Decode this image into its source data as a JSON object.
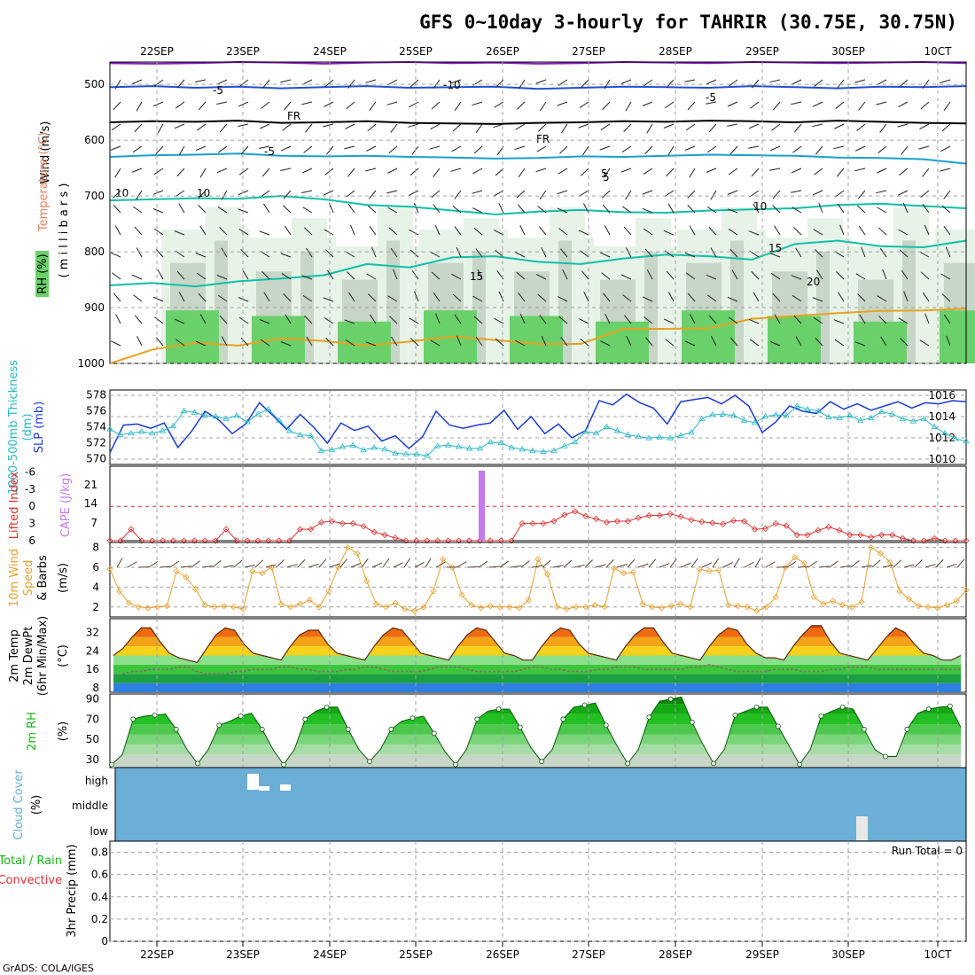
{
  "title": "GFS 0~10day 3-hourly for TAHRIR (30.75E, 30.75N)",
  "footer": "GrADS: COLA/IGES",
  "colors": {
    "panel_border": "#000000",
    "grid": "#a0a0a0",
    "rh_light": "#e6f3e6",
    "rh_mid": "#c8d6c8",
    "rh_green": "#6ad06a",
    "rh_dark": "#19b419",
    "temp_purple": "#8a1cc6",
    "temp_blue": "#1f4fd1",
    "temp_cyan": "#1ba0d0",
    "temp_teal": "#10c0a8",
    "temp_orange": "#e8a21e",
    "slp": "#1b3bd0",
    "thickness": "#28b8c8",
    "lifted": "#e03030",
    "cape": "#c678ef",
    "wind_speed": "#e8a030",
    "barb": "#5a4030",
    "cloud_bg": "#6baed6",
    "cloud_fill": "#ffffff"
  },
  "chart_data": [
    {
      "type": "line",
      "panel": "Vertical profile",
      "ylabel_parts": [
        {
          "text": "RH (%)",
          "color": "#19b419"
        },
        {
          "text": "Temperature (°C)",
          "color": "#e08060"
        },
        {
          "text": "Wind (m/s)",
          "color": "#000000"
        }
      ],
      "ylabel_units": "( m i l l i b a r s )",
      "yticks": [
        "500",
        "600",
        "700",
        "800",
        "900",
        "1000"
      ],
      "ylim": [
        460,
        1000
      ],
      "reversed_y": true,
      "contours": [
        {
          "label": "-10",
          "color": "#8a1cc6",
          "p": [
            462,
            463,
            462,
            460,
            461,
            463,
            461,
            460,
            462,
            461,
            463,
            462,
            460,
            461,
            462,
            460,
            461,
            462,
            461,
            460,
            462
          ]
        },
        {
          "label": "-5",
          "color": "#1f4fd1",
          "p": [
            505,
            503,
            506,
            504,
            507,
            505,
            503,
            506,
            505,
            504,
            508,
            506,
            504,
            505,
            506,
            503,
            505,
            507,
            504,
            505,
            503
          ]
        },
        {
          "label": "FR",
          "color": "#000000",
          "p": [
            568,
            566,
            567,
            565,
            569,
            568,
            566,
            569,
            570,
            571,
            569,
            568,
            566,
            567,
            565,
            566,
            568,
            565,
            567,
            569,
            570
          ]
        },
        {
          "label": "-5",
          "color": "#1ba0d0",
          "p": [
            630,
            627,
            626,
            624,
            628,
            629,
            628,
            630,
            631,
            633,
            632,
            629,
            630,
            628,
            626,
            627,
            628,
            631,
            632,
            634,
            642
          ]
        },
        {
          "label": "10",
          "color": "#10c0a8",
          "p": [
            708,
            706,
            704,
            705,
            700,
            706,
            716,
            719,
            726,
            733,
            728,
            725,
            729,
            730,
            726,
            724,
            722,
            716,
            714,
            718,
            722
          ]
        },
        {
          "label": "15",
          "color": "#10c0a8",
          "p": [
            860,
            856,
            862,
            853,
            848,
            842,
            822,
            828,
            810,
            808,
            818,
            822,
            812,
            805,
            808,
            814,
            786,
            780,
            790,
            792,
            780
          ]
        },
        {
          "label": "20",
          "color": "#e8a21e",
          "p": [
            1000,
            975,
            963,
            968,
            955,
            960,
            968,
            961,
            952,
            958,
            965,
            965,
            938,
            938,
            937,
            920,
            915,
            910,
            906,
            905,
            902
          ]
        }
      ],
      "contour_labels": [
        "-10",
        "-5",
        "FR",
        "FR",
        "-5",
        "-5",
        "5",
        "10",
        "10",
        "15",
        "15",
        "20",
        "10",
        "5"
      ]
    },
    {
      "type": "line",
      "panel": "Pressure / Thickness",
      "ylabel_left": "1000-500mb Thickness (dm)",
      "ylabel_right": "SLP (mb)",
      "yticks_left": [
        "578",
        "576",
        "574",
        "572",
        "570"
      ],
      "yticks_right": [
        "1016",
        "1014",
        "1012",
        "1010"
      ],
      "ylim_slp": [
        1009.5,
        1016.5
      ],
      "series": [
        {
          "name": "SLP (mb)",
          "values": [
            1010.6,
            1013.2,
            1013.3,
            1012.9,
            1013.4,
            1011.1,
            1012.6,
            1014.5,
            1013.7,
            1012.4,
            1013.3,
            1015.3,
            1014.1,
            1012.8,
            1014.2,
            1013.0,
            1011.5,
            1013.4,
            1012.7,
            1013.1,
            1011.7,
            1012.2,
            1011.0,
            1012.1,
            1014.5,
            1013.2,
            1012.9,
            1013.2,
            1013.4,
            1014.6,
            1012.8,
            1014.0,
            1012.4,
            1013.3,
            1012.0,
            1012.7,
            1015.5,
            1015.1,
            1016.1,
            1015.3,
            1014.8,
            1013.3,
            1015.4,
            1015.6,
            1015.8,
            1015.2,
            1016.0,
            1015.0,
            1012.5,
            1013.5,
            1015.0,
            1014.5,
            1014.3,
            1015.4,
            1014.7,
            1015.2,
            1014.6,
            1015.0,
            1015.4,
            1014.8,
            1015.3,
            1015.2,
            1015.5,
            1015.4
          ]
        },
        {
          "name": "Thickness (dm)",
          "values": [
            573.7,
            573.0,
            573.2,
            573.4,
            573.2,
            573.5,
            574.1,
            576.0,
            575.8,
            575.4,
            575.3,
            575.0,
            575.4,
            574.6,
            575.6,
            576.2,
            574.8,
            573.5,
            573.0,
            572.9,
            571.0,
            571.1,
            571.5,
            571.7,
            571.1,
            571.4,
            571.2,
            570.7,
            570.6,
            570.6,
            570.4,
            571.6,
            571.7,
            571.5,
            571.3,
            571.3,
            572.1,
            572.0,
            571.4,
            571.2,
            571.0,
            570.9,
            571.0,
            571.6,
            572.1,
            573.4,
            573.2,
            574.0,
            573.5,
            573.0,
            572.8,
            572.6,
            572.7,
            572.6,
            572.9,
            573.3,
            575.0,
            575.5,
            575.6,
            575.4,
            574.8,
            574.5,
            575.3,
            575.5,
            575.4,
            576.6,
            576.2,
            576.0,
            575.2,
            575.1,
            575.4,
            574.8,
            575.1,
            575.9,
            575.6,
            575.0,
            574.7,
            575.0,
            574.0,
            573.2,
            572.5,
            572.2
          ]
        }
      ]
    },
    {
      "type": "line",
      "panel": "Stability",
      "ylabel_left": "Lifted Index",
      "ylabel_right": "CAPE (J/kg)",
      "yticks_left": [
        "-6",
        "-3",
        "0",
        "3",
        "6"
      ],
      "yticks_right": [
        "21",
        "14",
        "7"
      ],
      "series": [
        {
          "name": "Lifted Index",
          "values": [
            6.0,
            6.0,
            4.0,
            6.0,
            6.0,
            6.0,
            6.0,
            6.0,
            6.0,
            6.0,
            6.0,
            4.0,
            6.0,
            6.0,
            6.0,
            6.0,
            6.0,
            6.0,
            4.0,
            4.0,
            2.8,
            2.6,
            3.0,
            3.0,
            3.5,
            4.5,
            5.0,
            5.5,
            6.0,
            6.0,
            6.0,
            6.0,
            6.0,
            6.0,
            6.0,
            6.0,
            6.0,
            6.0,
            6.0,
            3.0,
            3.0,
            3.0,
            2.6,
            1.5,
            0.9,
            1.7,
            2.2,
            2.8,
            2.6,
            2.6,
            2.0,
            1.6,
            1.6,
            1.3,
            1.8,
            2.4,
            2.7,
            2.9,
            3.1,
            2.5,
            2.6,
            4.0,
            3.9,
            3.0,
            3.4,
            5.0,
            5.0,
            4.2,
            3.6,
            4.2,
            5.0,
            5.0,
            5.4,
            5.0,
            5.0,
            5.6,
            6.0,
            6.0,
            5.6,
            6.0,
            6.0,
            6.0
          ]
        },
        {
          "name": "CAPE (J/kg)",
          "at": "25SEP 18Z",
          "value": 25
        }
      ]
    },
    {
      "type": "line",
      "panel": "Wind",
      "ylabel": "10m Wind Speed (m/s) & Barbs",
      "yticks": [
        "8",
        "6",
        "4",
        "2"
      ],
      "ylim": [
        1,
        8.5
      ],
      "series": [
        {
          "name": "10m Wind Speed (m/s)",
          "values": [
            5.8,
            3.6,
            2.4,
            2.0,
            1.9,
            2.0,
            2.1,
            5.6,
            5.0,
            3.8,
            2.2,
            2.0,
            2.1,
            2.0,
            1.8,
            5.6,
            5.4,
            6.0,
            2.3,
            2.0,
            2.3,
            2.7,
            2.0,
            3.6,
            6.0,
            8.0,
            7.4,
            4.6,
            2.3,
            2.0,
            2.4,
            1.8,
            1.6,
            2.0,
            3.6,
            6.8,
            6.0,
            3.2,
            2.2,
            1.9,
            2.1,
            2.0,
            2.0,
            1.9,
            2.7,
            6.8,
            5.3,
            2.0,
            1.8,
            2.0,
            2.0,
            2.2,
            2.0,
            5.9,
            5.4,
            5.5,
            2.3,
            2.0,
            1.9,
            2.1,
            2.3,
            2.0,
            5.8,
            5.6,
            5.7,
            2.2,
            2.1,
            2.0,
            1.6,
            2.0,
            3.0,
            6.0,
            7.0,
            6.4,
            3.0,
            2.3,
            2.6,
            2.2,
            2.0,
            2.5,
            8.0,
            7.4,
            6.5,
            3.6,
            2.8,
            2.1,
            2.0,
            1.9,
            2.2,
            2.6,
            3.7
          ]
        }
      ]
    },
    {
      "type": "area",
      "panel": "2m Temperature",
      "ylabel": "2m Temp 2m DewPt (6hr Min/Max) (°C)",
      "yticks": [
        "32",
        "24",
        "16",
        "8"
      ],
      "ylim": [
        6,
        38
      ],
      "series": [
        {
          "name": "2m Temp",
          "values": [
            22,
            25,
            30,
            34,
            34,
            28,
            23,
            21,
            20,
            19,
            25,
            31,
            34,
            33,
            27,
            23,
            22,
            21,
            20,
            26,
            31,
            33,
            33,
            27,
            23,
            22,
            21,
            20,
            26,
            31,
            34,
            33,
            28,
            23,
            22,
            21,
            20,
            26,
            31,
            34,
            33,
            28,
            23,
            22,
            20,
            20,
            26,
            31,
            34,
            33,
            27,
            23,
            22,
            21,
            20,
            26,
            31,
            34,
            34,
            28,
            23,
            22,
            21,
            20,
            26,
            31,
            34,
            33,
            27,
            23,
            21,
            21,
            20,
            26,
            31,
            35,
            35,
            28,
            23,
            22,
            21,
            20,
            25,
            30,
            34,
            32,
            27,
            23,
            22,
            20,
            20,
            22
          ]
        },
        {
          "name": "2m DewPt",
          "values": [
            13,
            14,
            15,
            15,
            16,
            16,
            16,
            17,
            17,
            15,
            14,
            14,
            14,
            15,
            15,
            16,
            16,
            16,
            17,
            17,
            16,
            16,
            15,
            15,
            15,
            16,
            16,
            17,
            17,
            16,
            15,
            15,
            15,
            15,
            16,
            17,
            17,
            17,
            16,
            15,
            15,
            15,
            15,
            15,
            16,
            17,
            17,
            16,
            16,
            15,
            15,
            15,
            16,
            16,
            17,
            17,
            17,
            16,
            16,
            16,
            16,
            16,
            17,
            17,
            18,
            17,
            16,
            15,
            15,
            15,
            15,
            16,
            16,
            16,
            15,
            15,
            15,
            16,
            16,
            17,
            17,
            17,
            16,
            16,
            16,
            16,
            16,
            16,
            16,
            16,
            16,
            16
          ]
        }
      ]
    },
    {
      "type": "area",
      "panel": "2m Relative Humidity",
      "ylabel": "2m RH (%)",
      "yticks": [
        "90",
        "70",
        "50",
        "30"
      ],
      "ylim": [
        22,
        95
      ],
      "series": [
        {
          "name": "2m RH (%)",
          "values": [
            25,
            35,
            70,
            73,
            74,
            75,
            60,
            40,
            26,
            40,
            64,
            68,
            73,
            76,
            60,
            40,
            25,
            40,
            70,
            78,
            82,
            82,
            60,
            40,
            28,
            40,
            60,
            68,
            71,
            73,
            56,
            38,
            25,
            40,
            70,
            78,
            80,
            80,
            62,
            42,
            28,
            40,
            70,
            82,
            84,
            86,
            64,
            44,
            26,
            40,
            72,
            88,
            90,
            92,
            67,
            45,
            26,
            40,
            74,
            78,
            82,
            82,
            63,
            44,
            25,
            40,
            73,
            78,
            82,
            80,
            60,
            40,
            33,
            33,
            60,
            76,
            80,
            82,
            83,
            62
          ]
        }
      ]
    },
    {
      "type": "bar",
      "panel": "Cloud Cover",
      "ylabel": "Cloud Cover (%)",
      "levels": [
        "high",
        "middle",
        "low"
      ],
      "series": [
        {
          "name": "high",
          "x": [
            "23SEP 03Z",
            "23SEP 06Z",
            "23SEP 12Z"
          ],
          "values": [
            100,
            40,
            50
          ]
        },
        {
          "name": "low",
          "x": [
            "30SEP 03Z"
          ],
          "values": [
            100
          ]
        }
      ]
    },
    {
      "type": "bar",
      "panel": "Precipitation",
      "ylabel_parts": [
        {
          "text": "Total / Rain",
          "color": "#19b419"
        },
        {
          "text": "Convective",
          "color": "#e03030"
        },
        {
          "text": "3hr Precip (mm)",
          "color": "#000000"
        }
      ],
      "yticks": [
        "0.8",
        "0.6",
        "0.4",
        "0.2",
        "0"
      ],
      "ylim": [
        0,
        0.9
      ],
      "run_total": "Run Total = 0",
      "series": []
    }
  ],
  "x_axis": {
    "dates": [
      "22SEP",
      "23SEP",
      "24SEP",
      "25SEP",
      "26SEP",
      "27SEP",
      "28SEP",
      "29SEP",
      "30SEP",
      "1OCT"
    ],
    "top_labels": [
      "22SEP",
      "23SEP",
      "24SEP",
      "25SEP",
      "26SEP",
      "27SEP",
      "28SEP",
      "29SEP",
      "30SEP",
      "10CT"
    ],
    "bottom_labels": [
      "22SEP",
      "23SEP",
      "24SEP",
      "25SEP",
      "26SEP",
      "27SEP",
      "28SEP",
      "29SEP",
      "30SEP",
      "10CT"
    ]
  }
}
